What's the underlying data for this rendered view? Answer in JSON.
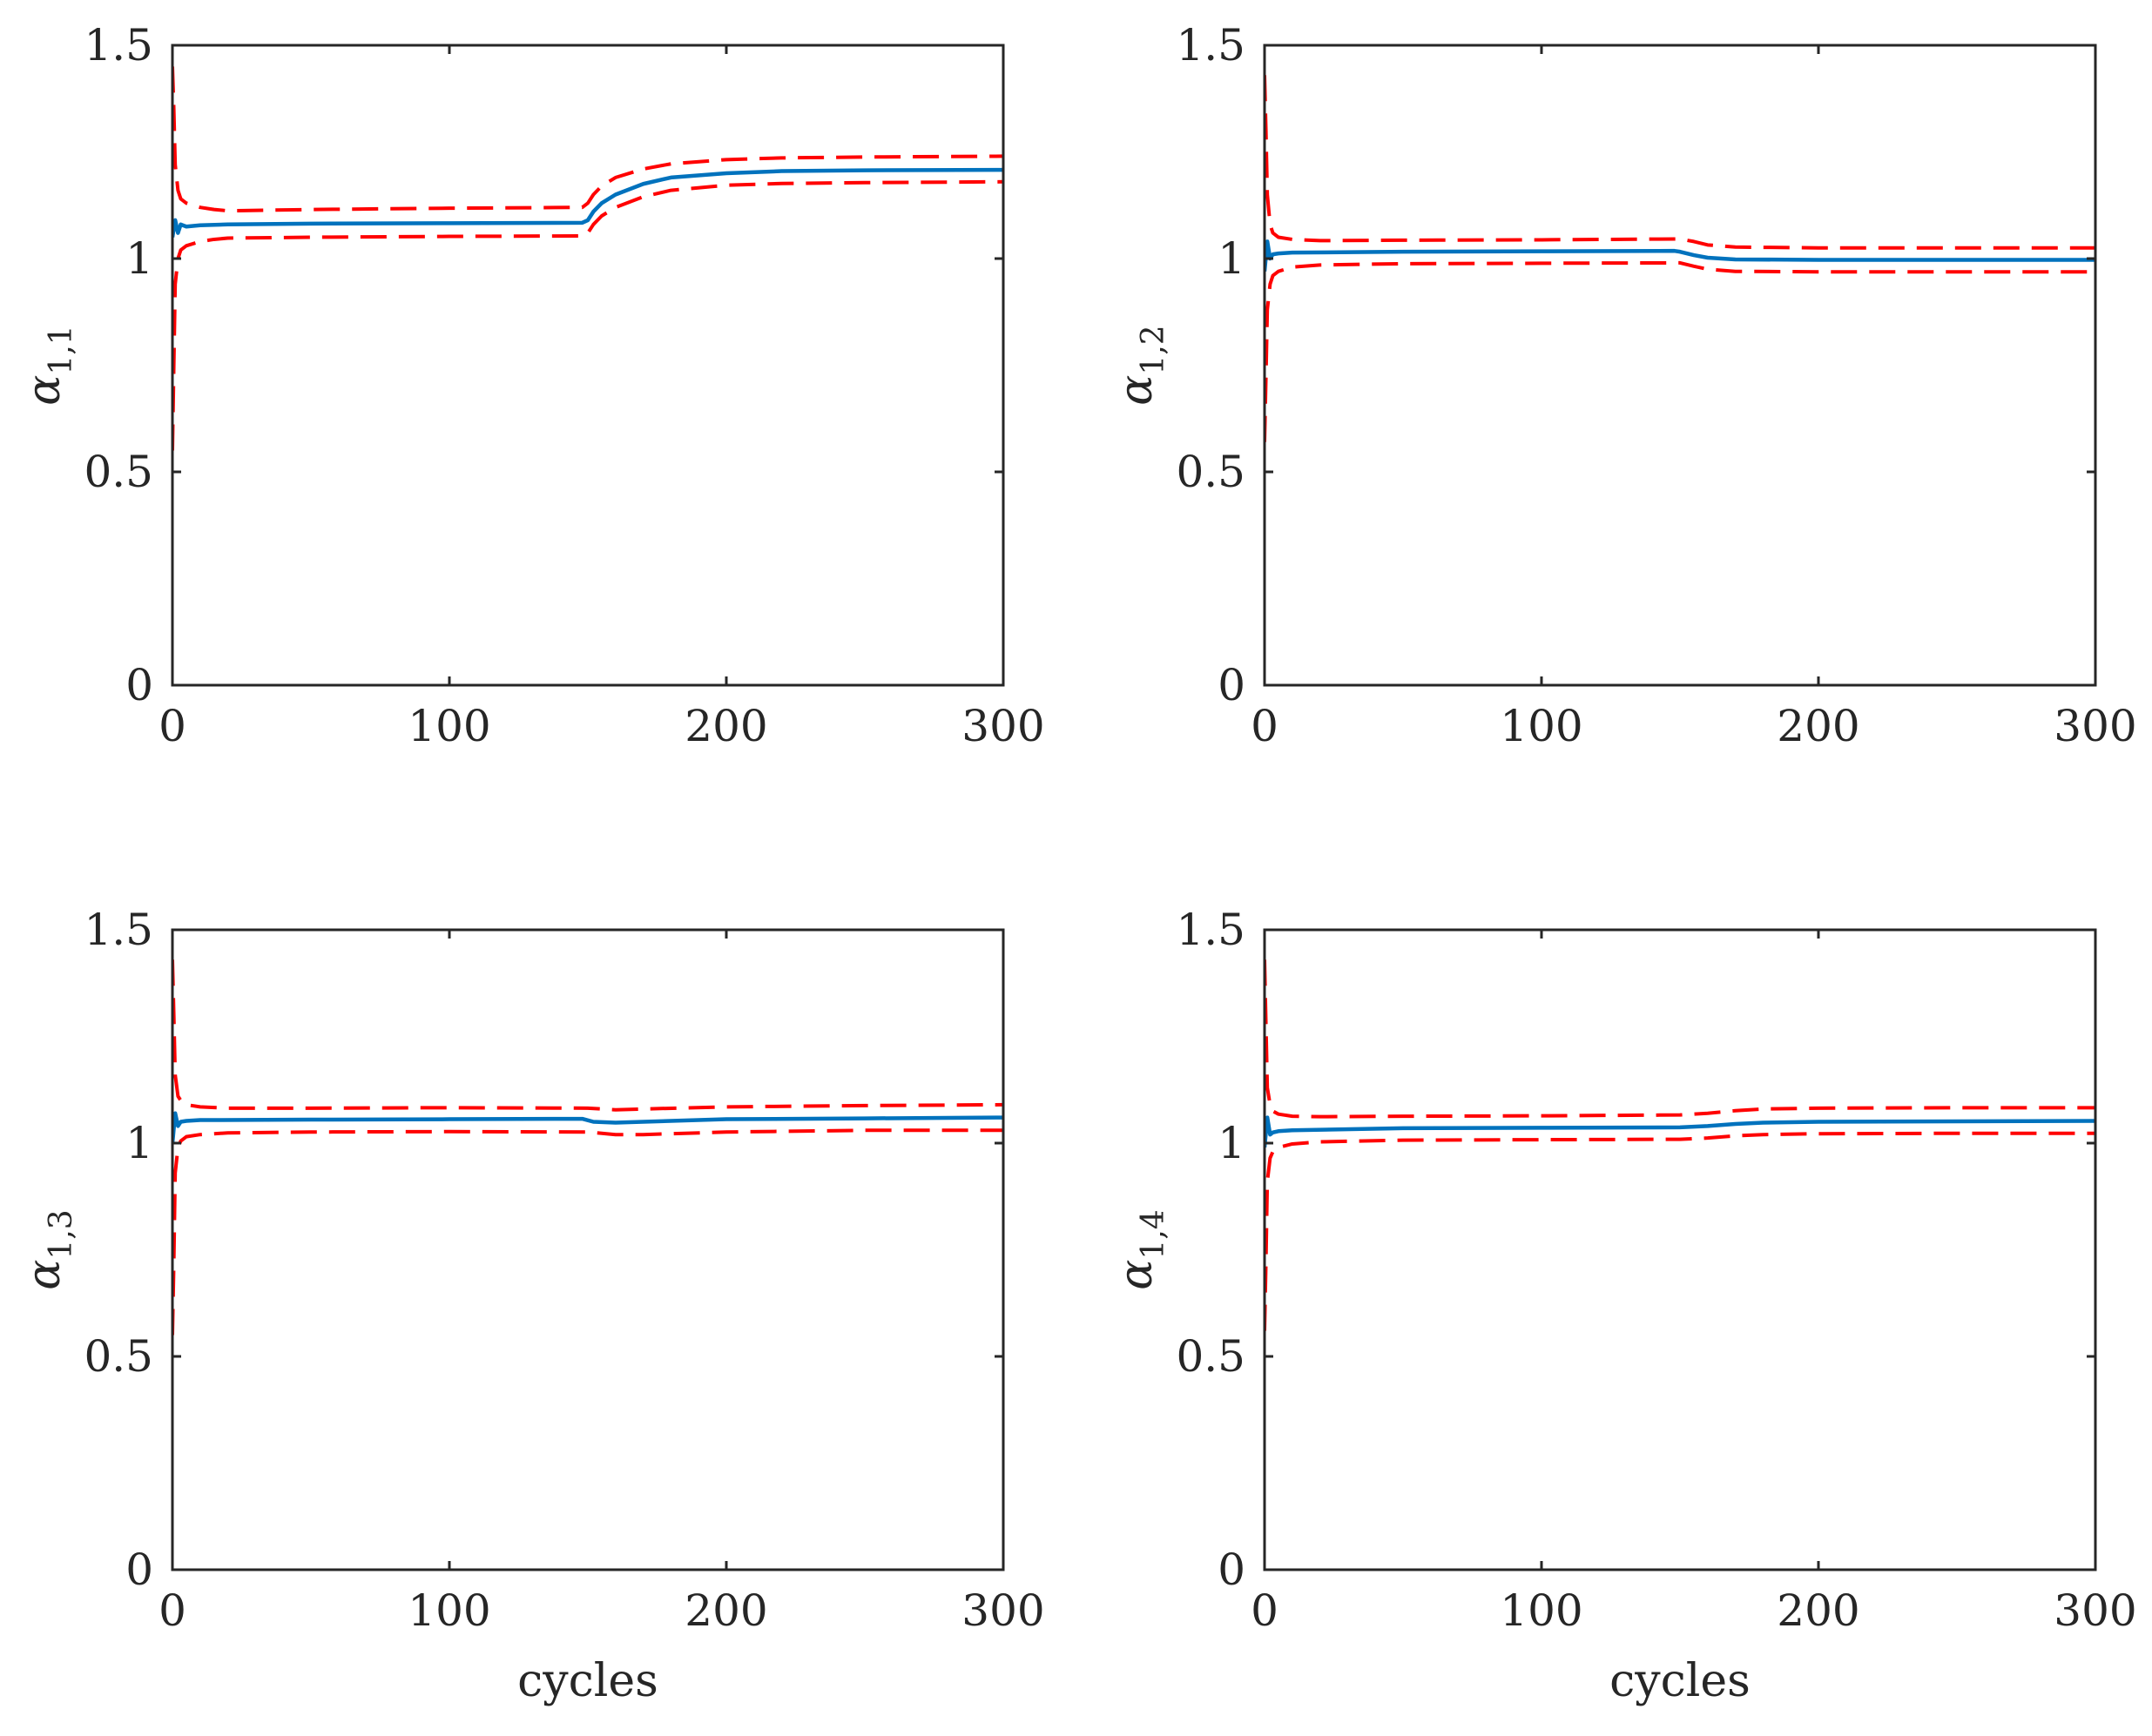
{
  "figure": {
    "colors": {
      "estimate": "#0072BD",
      "bounds": "#FF0000",
      "axes": "#262626"
    }
  },
  "chart_data": [
    {
      "type": "line",
      "panel": "top-left",
      "ylabel_symbol": "α",
      "ylabel_subscript": "1,1",
      "xlabel": "",
      "xlim": [
        0,
        300
      ],
      "ylim": [
        0,
        1.5
      ],
      "xticks": [
        "0",
        "100",
        "200",
        "300"
      ],
      "yticks": [
        "0",
        "0.5",
        "1",
        "1.5"
      ],
      "series": [
        {
          "name": "estimate",
          "style": "solid",
          "color": "#0072BD",
          "x": [
            0,
            1,
            2,
            3,
            5,
            10,
            20,
            50,
            100,
            148,
            150,
            152,
            155,
            160,
            170,
            180,
            200,
            220,
            250,
            300
          ],
          "y": [
            1.05,
            1.09,
            1.06,
            1.08,
            1.075,
            1.078,
            1.08,
            1.082,
            1.083,
            1.084,
            1.09,
            1.11,
            1.13,
            1.15,
            1.175,
            1.19,
            1.2,
            1.205,
            1.207,
            1.208
          ]
        },
        {
          "name": "upper bound",
          "style": "dashed",
          "color": "#FF0000",
          "x": [
            0,
            0.5,
            1,
            2,
            3,
            5,
            10,
            15,
            20,
            50,
            100,
            148,
            150,
            152,
            155,
            160,
            170,
            180,
            200,
            220,
            250,
            300
          ],
          "y": [
            1.45,
            1.35,
            1.22,
            1.16,
            1.14,
            1.13,
            1.12,
            1.115,
            1.112,
            1.115,
            1.118,
            1.12,
            1.13,
            1.15,
            1.17,
            1.19,
            1.21,
            1.222,
            1.232,
            1.236,
            1.238,
            1.24
          ]
        },
        {
          "name": "lower bound",
          "style": "dashed",
          "color": "#FF0000",
          "x": [
            0,
            0.5,
            1,
            2,
            3,
            5,
            10,
            15,
            20,
            50,
            100,
            148,
            150,
            152,
            155,
            160,
            170,
            180,
            200,
            220,
            250,
            300
          ],
          "y": [
            0.55,
            0.75,
            0.94,
            1.0,
            1.02,
            1.03,
            1.04,
            1.045,
            1.048,
            1.05,
            1.052,
            1.053,
            1.06,
            1.08,
            1.1,
            1.12,
            1.145,
            1.16,
            1.172,
            1.176,
            1.178,
            1.18
          ]
        }
      ]
    },
    {
      "type": "line",
      "panel": "top-right",
      "ylabel_symbol": "α",
      "ylabel_subscript": "1,2",
      "xlabel": "",
      "xlim": [
        0,
        300
      ],
      "ylim": [
        0,
        1.5
      ],
      "xticks": [
        "0",
        "100",
        "200",
        "300"
      ],
      "yticks": [
        "0",
        "0.5",
        "1",
        "1.5"
      ],
      "series": [
        {
          "name": "estimate",
          "style": "solid",
          "color": "#0072BD",
          "x": [
            0,
            1,
            2,
            3,
            5,
            10,
            50,
            100,
            148,
            150,
            155,
            160,
            170,
            200,
            250,
            300
          ],
          "y": [
            0.97,
            1.04,
            1.0,
            1.01,
            1.012,
            1.014,
            1.016,
            1.017,
            1.018,
            1.016,
            1.008,
            1.002,
            0.998,
            0.997,
            0.997,
            0.997
          ]
        },
        {
          "name": "upper bound",
          "style": "dashed",
          "color": "#FF0000",
          "x": [
            0,
            0.5,
            1,
            2,
            3,
            5,
            10,
            20,
            50,
            100,
            150,
            155,
            160,
            170,
            200,
            250,
            300
          ],
          "y": [
            1.43,
            1.3,
            1.15,
            1.08,
            1.06,
            1.05,
            1.045,
            1.042,
            1.043,
            1.044,
            1.046,
            1.04,
            1.032,
            1.027,
            1.025,
            1.025,
            1.025
          ]
        },
        {
          "name": "lower bound",
          "style": "dashed",
          "color": "#FF0000",
          "x": [
            0,
            0.5,
            1,
            2,
            3,
            5,
            10,
            20,
            50,
            100,
            150,
            155,
            160,
            170,
            200,
            250,
            300
          ],
          "y": [
            0.57,
            0.72,
            0.88,
            0.94,
            0.96,
            0.97,
            0.98,
            0.985,
            0.988,
            0.989,
            0.99,
            0.982,
            0.975,
            0.97,
            0.969,
            0.969,
            0.969
          ]
        }
      ]
    },
    {
      "type": "line",
      "panel": "bottom-left",
      "ylabel_symbol": "α",
      "ylabel_subscript": "1,3",
      "xlabel": "cycles",
      "xlim": [
        0,
        300
      ],
      "ylim": [
        0,
        1.5
      ],
      "xticks": [
        "0",
        "100",
        "200",
        "300"
      ],
      "yticks": [
        "0",
        "0.5",
        "1",
        "1.5"
      ],
      "series": [
        {
          "name": "estimate",
          "style": "solid",
          "color": "#0072BD",
          "x": [
            0,
            1,
            2,
            3,
            5,
            10,
            50,
            100,
            148,
            152,
            160,
            170,
            200,
            250,
            300
          ],
          "y": [
            1.0,
            1.07,
            1.04,
            1.05,
            1.052,
            1.054,
            1.055,
            1.056,
            1.057,
            1.05,
            1.048,
            1.05,
            1.056,
            1.058,
            1.06
          ]
        },
        {
          "name": "upper bound",
          "style": "dashed",
          "color": "#FF0000",
          "x": [
            0,
            0.5,
            1,
            2,
            3,
            5,
            10,
            20,
            50,
            100,
            150,
            160,
            170,
            200,
            250,
            300
          ],
          "y": [
            1.43,
            1.3,
            1.16,
            1.11,
            1.1,
            1.09,
            1.085,
            1.082,
            1.082,
            1.083,
            1.082,
            1.078,
            1.08,
            1.085,
            1.088,
            1.09
          ]
        },
        {
          "name": "lower bound",
          "style": "dashed",
          "color": "#FF0000",
          "x": [
            0,
            0.5,
            1,
            2,
            3,
            5,
            10,
            20,
            50,
            100,
            150,
            160,
            170,
            200,
            250,
            300
          ],
          "y": [
            0.55,
            0.72,
            0.93,
            0.99,
            1.005,
            1.015,
            1.02,
            1.024,
            1.026,
            1.027,
            1.026,
            1.02,
            1.02,
            1.026,
            1.03,
            1.03
          ]
        }
      ]
    },
    {
      "type": "line",
      "panel": "bottom-right",
      "ylabel_symbol": "α",
      "ylabel_subscript": "1,4",
      "xlabel": "cycles",
      "xlim": [
        0,
        300
      ],
      "ylim": [
        0,
        1.5
      ],
      "xticks": [
        "0",
        "100",
        "200",
        "300"
      ],
      "yticks": [
        "0",
        "0.5",
        "1",
        "1.5"
      ],
      "series": [
        {
          "name": "estimate",
          "style": "solid",
          "color": "#0072BD",
          "x": [
            0,
            1,
            2,
            3,
            5,
            10,
            50,
            100,
            150,
            160,
            170,
            180,
            200,
            250,
            300
          ],
          "y": [
            0.99,
            1.06,
            1.02,
            1.025,
            1.028,
            1.03,
            1.035,
            1.036,
            1.037,
            1.04,
            1.045,
            1.048,
            1.05,
            1.051,
            1.052
          ]
        },
        {
          "name": "upper bound",
          "style": "dashed",
          "color": "#FF0000",
          "x": [
            0,
            0.5,
            1,
            2,
            3,
            5,
            10,
            20,
            50,
            100,
            150,
            160,
            170,
            180,
            200,
            250,
            300
          ],
          "y": [
            1.43,
            1.28,
            1.13,
            1.09,
            1.075,
            1.068,
            1.063,
            1.062,
            1.063,
            1.064,
            1.066,
            1.07,
            1.076,
            1.08,
            1.082,
            1.083,
            1.083
          ]
        },
        {
          "name": "lower bound",
          "style": "dashed",
          "color": "#FF0000",
          "x": [
            0,
            0.5,
            1,
            2,
            3,
            5,
            10,
            20,
            50,
            100,
            150,
            160,
            170,
            180,
            200,
            250,
            300
          ],
          "y": [
            0.56,
            0.72,
            0.91,
            0.965,
            0.98,
            0.99,
            0.998,
            1.003,
            1.007,
            1.008,
            1.009,
            1.012,
            1.017,
            1.02,
            1.022,
            1.023,
            1.023
          ]
        }
      ]
    }
  ]
}
